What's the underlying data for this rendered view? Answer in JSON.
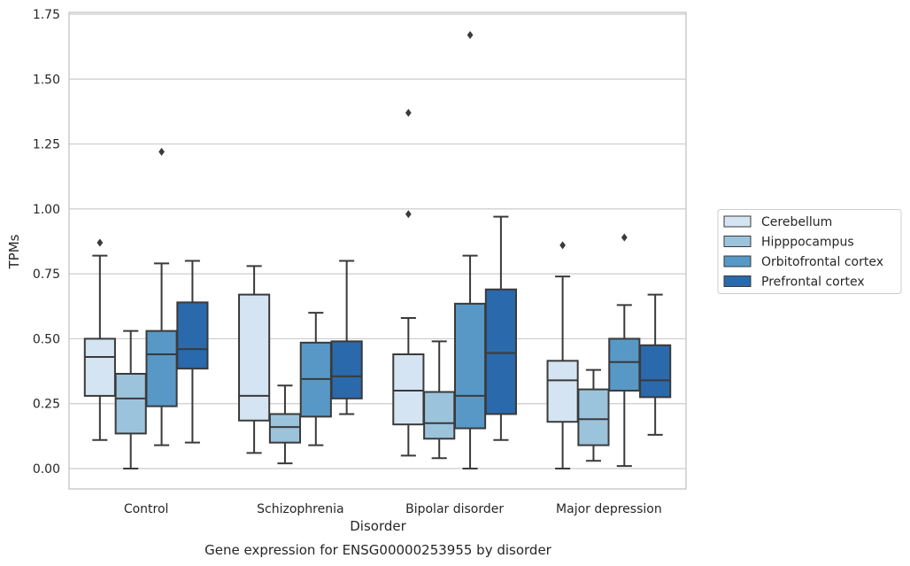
{
  "chart_data": {
    "type": "box",
    "caption": "Gene expression for ENSG00000253955 by disorder",
    "xlabel": "Disorder",
    "ylabel": "TPMs",
    "ylim": [
      -0.08,
      1.76
    ],
    "yticks": [
      "0.00",
      "0.25",
      "0.50",
      "0.75",
      "1.00",
      "1.25",
      "1.50",
      "1.75"
    ],
    "grid": "horizontal",
    "legend_position": "right",
    "categories": [
      "Control",
      "Schizophrenia",
      "Bipolar disorder",
      "Major depression"
    ],
    "series": [
      {
        "name": "Cerebellum",
        "color": "#d4e4f2",
        "boxes": [
          {
            "whislo": 0.11,
            "q1": 0.28,
            "med": 0.43,
            "q3": 0.5,
            "whishi": 0.82,
            "fliers": [
              0.87
            ]
          },
          {
            "whislo": 0.06,
            "q1": 0.185,
            "med": 0.28,
            "q3": 0.67,
            "whishi": 0.78,
            "fliers": []
          },
          {
            "whislo": 0.05,
            "q1": 0.17,
            "med": 0.3,
            "q3": 0.44,
            "whishi": 0.58,
            "fliers": [
              0.98,
              1.37
            ]
          },
          {
            "whislo": 0.0,
            "q1": 0.18,
            "med": 0.34,
            "q3": 0.415,
            "whishi": 0.74,
            "fliers": [
              0.86
            ]
          }
        ]
      },
      {
        "name": "Hipppocampus",
        "color": "#9cc3dc",
        "boxes": [
          {
            "whislo": 0.0,
            "q1": 0.135,
            "med": 0.27,
            "q3": 0.365,
            "whishi": 0.53,
            "fliers": []
          },
          {
            "whislo": 0.02,
            "q1": 0.1,
            "med": 0.16,
            "q3": 0.21,
            "whishi": 0.32,
            "fliers": []
          },
          {
            "whislo": 0.04,
            "q1": 0.115,
            "med": 0.175,
            "q3": 0.295,
            "whishi": 0.49,
            "fliers": []
          },
          {
            "whislo": 0.03,
            "q1": 0.09,
            "med": 0.19,
            "q3": 0.305,
            "whishi": 0.38,
            "fliers": []
          }
        ]
      },
      {
        "name": "Orbitofrontal cortex",
        "color": "#5898c6",
        "boxes": [
          {
            "whislo": 0.09,
            "q1": 0.24,
            "med": 0.44,
            "q3": 0.53,
            "whishi": 0.79,
            "fliers": [
              1.22
            ]
          },
          {
            "whislo": 0.09,
            "q1": 0.2,
            "med": 0.345,
            "q3": 0.485,
            "whishi": 0.6,
            "fliers": []
          },
          {
            "whislo": 0.0,
            "q1": 0.155,
            "med": 0.28,
            "q3": 0.635,
            "whishi": 0.82,
            "fliers": [
              1.67
            ]
          },
          {
            "whislo": 0.01,
            "q1": 0.3,
            "med": 0.41,
            "q3": 0.5,
            "whishi": 0.63,
            "fliers": [
              0.89
            ]
          }
        ]
      },
      {
        "name": "Prefrontal cortex",
        "color": "#2a69ab",
        "boxes": [
          {
            "whislo": 0.1,
            "q1": 0.385,
            "med": 0.46,
            "q3": 0.64,
            "whishi": 0.8,
            "fliers": []
          },
          {
            "whislo": 0.21,
            "q1": 0.27,
            "med": 0.355,
            "q3": 0.49,
            "whishi": 0.8,
            "fliers": []
          },
          {
            "whislo": 0.11,
            "q1": 0.21,
            "med": 0.445,
            "q3": 0.69,
            "whishi": 0.97,
            "fliers": []
          },
          {
            "whislo": 0.13,
            "q1": 0.275,
            "med": 0.34,
            "q3": 0.475,
            "whishi": 0.67,
            "fliers": []
          }
        ]
      }
    ]
  }
}
